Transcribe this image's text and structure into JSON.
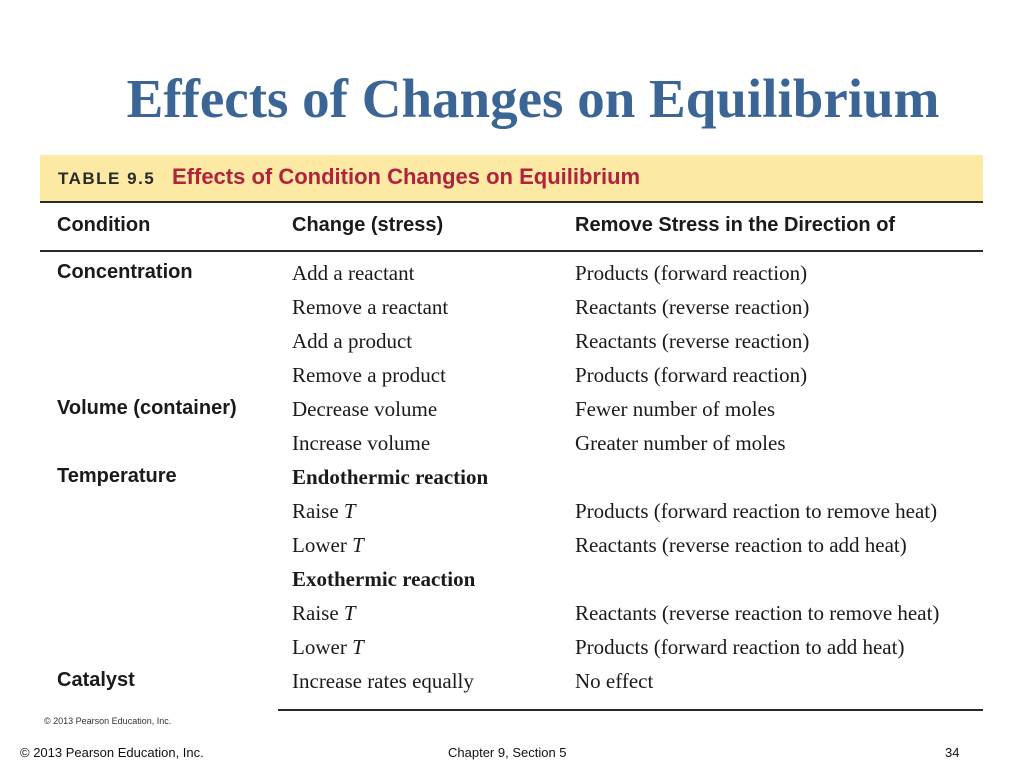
{
  "slide": {
    "title": "Effects of Changes on Equilibrium"
  },
  "table": {
    "number": "TABLE 9.5",
    "caption": "Effects of Condition Changes on Equilibrium",
    "headers": [
      "Condition",
      "Change (stress)",
      "Remove Stress in the Direction of"
    ],
    "rows": [
      {
        "condition": "Concentration",
        "change": "Add a reactant",
        "direction": "Products (forward reaction)"
      },
      {
        "condition": "",
        "change": "Remove a reactant",
        "direction": "Reactants (reverse reaction)"
      },
      {
        "condition": "",
        "change": "Add a product",
        "direction": "Reactants (reverse reaction)"
      },
      {
        "condition": "",
        "change": "Remove a product",
        "direction": "Products (forward reaction)"
      },
      {
        "condition": "Volume (container)",
        "change": "Decrease volume",
        "direction": "Fewer number of moles"
      },
      {
        "condition": "",
        "change": "Increase volume",
        "direction": "Greater number of moles"
      },
      {
        "condition": "Temperature",
        "change": "Endothermic reaction",
        "direction": ""
      },
      {
        "condition": "",
        "change": "Raise T",
        "direction": "Products (forward reaction to remove heat)"
      },
      {
        "condition": "",
        "change": "Lower T",
        "direction": "Reactants (reverse reaction to add heat)"
      },
      {
        "condition": "",
        "change": "Exothermic reaction",
        "direction": ""
      },
      {
        "condition": "",
        "change": "Raise T",
        "direction": "Reactants (reverse reaction to remove heat)"
      },
      {
        "condition": "",
        "change": "Lower T",
        "direction": "Products (forward reaction to add heat)"
      },
      {
        "condition": "Catalyst",
        "change": "Increase rates equally",
        "direction": "No effect"
      }
    ],
    "copyright": "© 2013 Pearson Education, Inc."
  },
  "footer": {
    "copyright": "© 2013 Pearson Education, Inc.",
    "chapter": "Chapter 9, Section 5",
    "page": "34"
  }
}
